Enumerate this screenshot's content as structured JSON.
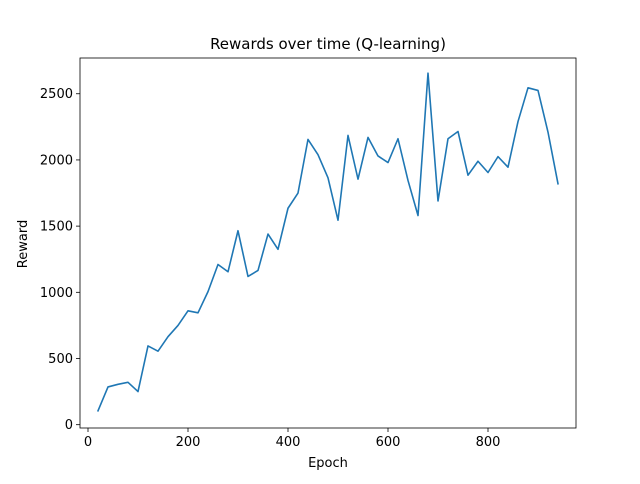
{
  "chart_data": {
    "type": "line",
    "title": "Rewards over time (Q-learning)",
    "xlabel": "Epoch",
    "ylabel": "Reward",
    "xlim": [
      -16,
      976
    ],
    "ylim": [
      -25,
      2770
    ],
    "xticks": [
      0,
      200,
      400,
      600,
      800
    ],
    "yticks": [
      0,
      500,
      1000,
      1500,
      2000,
      2500
    ],
    "grid": false,
    "legend": "none",
    "line_color": "#1f77b4",
    "series": [
      {
        "x": [
          20,
          40,
          60,
          80,
          100,
          120,
          140,
          160,
          180,
          200,
          220,
          240,
          260,
          280,
          300,
          320,
          340,
          360,
          380,
          400,
          420,
          440,
          460,
          480,
          500,
          520,
          540,
          560,
          580,
          600,
          620,
          640,
          660,
          680,
          700,
          720,
          740,
          760,
          780,
          800,
          820,
          840,
          860,
          880,
          900,
          920,
          940
        ],
        "values": [
          105,
          285,
          305,
          320,
          250,
          595,
          555,
          665,
          750,
          860,
          845,
          1005,
          1210,
          1155,
          1465,
          1120,
          1165,
          1440,
          1325,
          1635,
          1750,
          2155,
          2040,
          1865,
          1545,
          2185,
          1855,
          2170,
          2030,
          1980,
          2160,
          1845,
          1580,
          2655,
          1690,
          2160,
          2215,
          1885,
          1990,
          1905,
          2025,
          1945,
          2290,
          2545,
          2525,
          2210,
          1820
        ]
      }
    ]
  }
}
